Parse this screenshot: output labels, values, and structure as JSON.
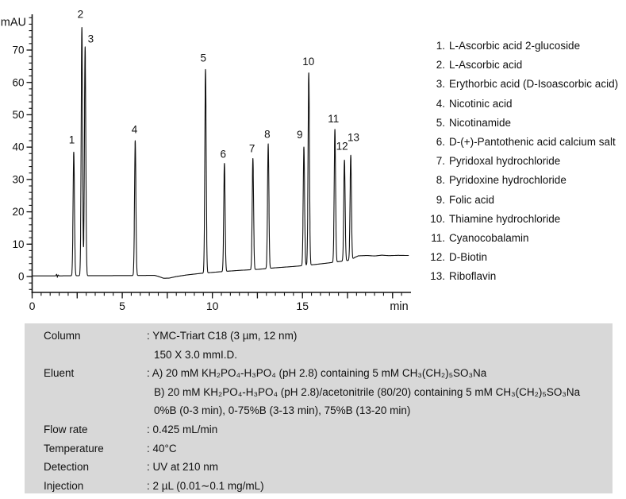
{
  "chart_data": {
    "type": "line",
    "title": "",
    "ylabel": "mAU",
    "xlabel": "min",
    "xlim": [
      0,
      21
    ],
    "ylim": [
      -5,
      81
    ],
    "y_major_ticks": [
      0,
      10,
      20,
      30,
      40,
      50,
      60,
      70
    ],
    "y_minor_step": 2,
    "x_labeled_ticks": [
      0,
      5,
      10,
      15
    ],
    "x_major_step": 2.5,
    "x_minor_step": 0.5,
    "grid": false,
    "line_color": "#111111",
    "peak_sigma_min": 0.038,
    "peaks": [
      {
        "n": "1",
        "name": "L-Ascorbic acid 2-glucoside",
        "rt": 2.31,
        "apex": 38.5,
        "label_t": 2.2,
        "label_v": 42.2
      },
      {
        "n": "2",
        "name": "L-Ascorbic acid",
        "rt": 2.76,
        "apex": 77.0,
        "label_t": 2.68,
        "label_v": 81.0
      },
      {
        "n": "3",
        "name": "Erythorbic acid (D-Isoascorbic acid)",
        "rt": 2.94,
        "apex": 71.0,
        "label_t": 3.25,
        "label_v": 73.5
      },
      {
        "n": "4",
        "name": "Nicotinic acid",
        "rt": 5.72,
        "apex": 42.0,
        "label_t": 5.68,
        "label_v": 45.5
      },
      {
        "n": "5",
        "name": "Nicotinamide",
        "rt": 9.62,
        "apex": 64.0,
        "label_t": 9.5,
        "label_v": 67.5
      },
      {
        "n": "6",
        "name": "D-(+)-Pantothenic acid calcium salt",
        "rt": 10.67,
        "apex": 35.0,
        "label_t": 10.6,
        "label_v": 37.8
      },
      {
        "n": "7",
        "name": "Pyridoxal hydrochloride",
        "rt": 12.25,
        "apex": 36.5,
        "label_t": 12.2,
        "label_v": 39.6
      },
      {
        "n": "8",
        "name": "Pyridoxine hydrochloride",
        "rt": 13.1,
        "apex": 41.0,
        "label_t": 13.05,
        "label_v": 44.0
      },
      {
        "n": "9",
        "name": "Folic acid",
        "rt": 15.08,
        "apex": 40.0,
        "label_t": 14.85,
        "label_v": 43.8
      },
      {
        "n": "10",
        "name": "Thiamine hydrochloride",
        "rt": 15.35,
        "apex": 63.0,
        "label_t": 15.33,
        "label_v": 66.5
      },
      {
        "n": "11",
        "name": "Cyanocobalamin",
        "rt": 16.8,
        "apex": 45.5,
        "label_t": 16.72,
        "label_v": 48.8
      },
      {
        "n": "12",
        "name": "D-Biotin",
        "rt": 17.33,
        "apex": 36.0,
        "label_t": 17.2,
        "label_v": 40.3
      },
      {
        "n": "13",
        "name": "Riboflavin",
        "rt": 17.68,
        "apex": 37.5,
        "label_t": 17.83,
        "label_v": 43.0
      }
    ],
    "baseline": [
      [
        0,
        0.2
      ],
      [
        1.3,
        0.2
      ],
      [
        1.36,
        0.7
      ],
      [
        1.4,
        -0.25
      ],
      [
        1.44,
        0.5
      ],
      [
        1.5,
        0.2
      ],
      [
        2.6,
        0.25
      ],
      [
        5.5,
        0.3
      ],
      [
        6.8,
        0.35
      ],
      [
        7.0,
        0.05
      ],
      [
        7.3,
        -0.55
      ],
      [
        7.6,
        -0.5
      ],
      [
        8.0,
        0.0
      ],
      [
        8.6,
        0.5
      ],
      [
        9.4,
        1.0
      ],
      [
        10.5,
        1.5
      ],
      [
        11.5,
        1.9
      ],
      [
        12.5,
        2.2
      ],
      [
        13.5,
        2.7
      ],
      [
        14.5,
        3.1
      ],
      [
        15.5,
        3.6
      ],
      [
        16.3,
        4.1
      ],
      [
        17.0,
        4.6
      ],
      [
        17.7,
        5.1
      ],
      [
        17.9,
        5.9
      ],
      [
        18.1,
        6.4
      ],
      [
        18.6,
        6.5
      ],
      [
        19.0,
        6.35
      ],
      [
        19.4,
        6.6
      ],
      [
        19.8,
        6.45
      ],
      [
        20.3,
        6.55
      ],
      [
        20.9,
        6.5
      ]
    ]
  },
  "legend": {
    "items": [
      {
        "num": "1.",
        "name": "L-Ascorbic acid 2-glucoside"
      },
      {
        "num": "2.",
        "name": "L-Ascorbic acid"
      },
      {
        "num": "3.",
        "name": "Erythorbic acid (D-Isoascorbic acid)"
      },
      {
        "num": "4.",
        "name": "Nicotinic acid"
      },
      {
        "num": "5.",
        "name": "Nicotinamide"
      },
      {
        "num": "6.",
        "name": "D-(+)-Pantothenic acid calcium salt"
      },
      {
        "num": "7.",
        "name": "Pyridoxal hydrochloride"
      },
      {
        "num": "8.",
        "name": "Pyridoxine hydrochloride"
      },
      {
        "num": "9.",
        "name": "Folic acid"
      },
      {
        "num": "10.",
        "name": "Thiamine hydrochloride"
      },
      {
        "num": "11.",
        "name": "Cyanocobalamin"
      },
      {
        "num": "12.",
        "name": "D-Biotin"
      },
      {
        "num": "13.",
        "name": "Riboflavin"
      }
    ]
  },
  "conditions": {
    "panel_color": "#d8d8d8",
    "rows": [
      {
        "label": "Column",
        "lines": [
          ": YMC-Triart C18 (3 µm, 12 nm)",
          "150 X 3.0 mmI.D."
        ]
      },
      {
        "label": "Eluent",
        "lines": [
          ": A) 20 mM KH₂PO₄-H₃PO₄ (pH 2.8) containing 5 mM CH₃(CH₂)₅SO₃Na",
          "B) 20 mM KH₂PO₄-H₃PO₄ (pH 2.8)/acetonitrile (80/20) containing 5 mM CH₃(CH₂)₅SO₃Na",
          "0%B (0-3 min), 0-75%B (3-13 min), 75%B (13-20 min)"
        ]
      },
      {
        "label": "Flow rate",
        "lines": [
          ": 0.425 mL/min"
        ]
      },
      {
        "label": "Temperature",
        "lines": [
          ": 40°C"
        ]
      },
      {
        "label": "Detection",
        "lines": [
          ": UV at 210 nm"
        ]
      },
      {
        "label": "Injection",
        "lines": [
          ": 2 µL (0.01∼0.1 mg/mL)"
        ]
      }
    ]
  }
}
